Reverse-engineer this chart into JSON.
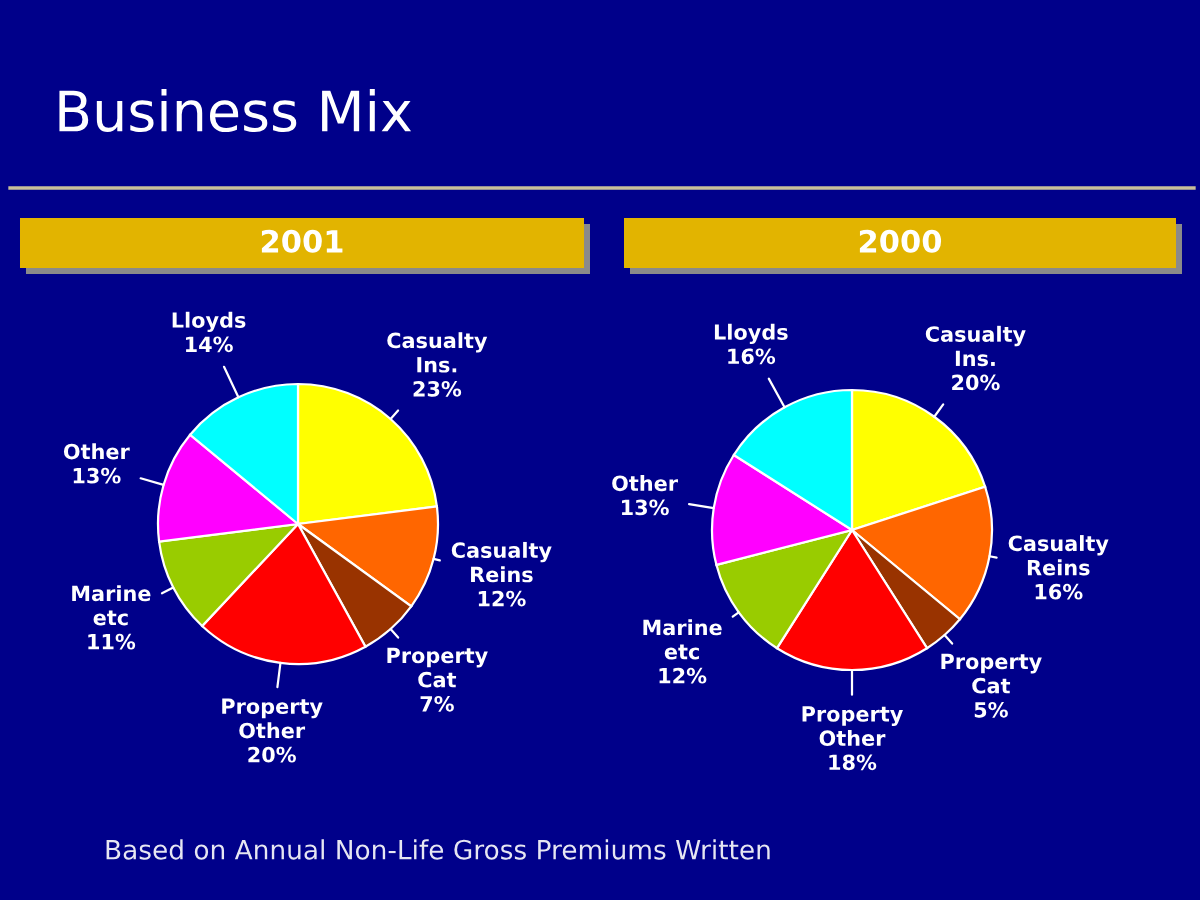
{
  "chart_data": [
    {
      "type": "pie",
      "title": "Business Mix",
      "subtitle": "2001",
      "categories": [
        "Casualty Ins.",
        "Casualty Reins",
        "Property Cat",
        "Property Other",
        "Marine etc",
        "Other",
        "Lloyds"
      ],
      "values": [
        23,
        12,
        7,
        20,
        11,
        13,
        14
      ],
      "value_labels": [
        "23%",
        "12%",
        "7%",
        "20%",
        "11%",
        "13%",
        "14%"
      ],
      "colors": [
        "#ffff00",
        "#ff6600",
        "#993300",
        "#ff0000",
        "#99cc00",
        "#ff00ff",
        "#00ffff"
      ],
      "annotations": [
        "Based on Annual Non-Life Gross Premiums Written"
      ]
    },
    {
      "type": "pie",
      "subtitle": "2000",
      "categories": [
        "Casualty Ins.",
        "Casualty Reins",
        "Property Cat",
        "Property Other",
        "Marine etc",
        "Other",
        "Lloyds"
      ],
      "values": [
        20,
        16,
        5,
        18,
        12,
        13,
        16
      ],
      "value_labels": [
        "20%",
        "16%",
        "5%",
        "18%",
        "12%",
        "13%",
        "16%"
      ],
      "colors": [
        "#ffff00",
        "#ff6600",
        "#993300",
        "#ff0000",
        "#99cc00",
        "#ff00ff",
        "#00ffff"
      ]
    }
  ]
}
